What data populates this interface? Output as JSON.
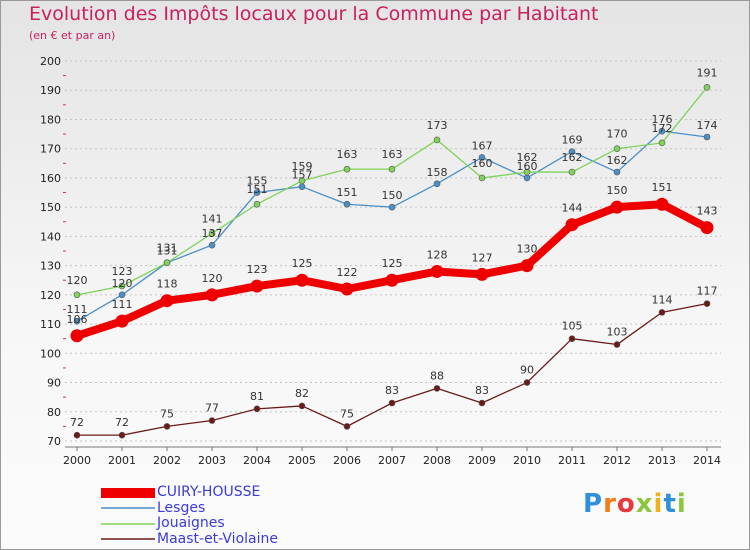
{
  "title": "Evolution des Impôts locaux pour la Commune par Habitant",
  "subtitle": "(en € et par an)",
  "logo": {
    "letters": [
      {
        "ch": "P",
        "color": "#2f8fd8"
      },
      {
        "ch": "r",
        "color": "#f07c1a"
      },
      {
        "ch": "o",
        "color": "#e83a3a"
      },
      {
        "ch": "x",
        "color": "#8cc63f"
      },
      {
        "ch": "i",
        "color": "#f0b21a"
      },
      {
        "ch": "t",
        "color": "#2f8fd8"
      },
      {
        "ch": "i",
        "color": "#8cc63f"
      }
    ]
  },
  "chart_data": {
    "type": "line",
    "title": "Evolution des Impôts locaux pour la Commune par Habitant",
    "subtitle": "(en € et par an)",
    "x": [
      2000,
      2001,
      2002,
      2003,
      2004,
      2005,
      2006,
      2007,
      2008,
      2009,
      2010,
      2011,
      2012,
      2013,
      2014
    ],
    "ylim": [
      70,
      200
    ],
    "yticks": [
      70,
      80,
      90,
      100,
      110,
      120,
      130,
      140,
      150,
      160,
      170,
      180,
      190,
      200
    ],
    "grid": "horizontal-dashed",
    "legend_position": "bottom-left",
    "series": [
      {
        "name": "CUIRY-HOUSSE",
        "color": "#ee0000",
        "emphasis": true,
        "values": [
          106,
          111,
          118,
          120,
          123,
          125,
          122,
          125,
          128,
          127,
          130,
          144,
          150,
          151,
          143
        ]
      },
      {
        "name": "Lesges",
        "color": "#4a90c8",
        "values": [
          111,
          120,
          131,
          137,
          155,
          157,
          151,
          150,
          158,
          167,
          160,
          169,
          162,
          176,
          174
        ]
      },
      {
        "name": "Jouaignes",
        "color": "#7fd35a",
        "values": [
          120,
          123,
          131,
          141,
          151,
          159,
          163,
          163,
          173,
          160,
          162,
          162,
          170,
          172,
          191
        ]
      },
      {
        "name": "Maast-et-Violaine",
        "color": "#6b1a1a",
        "values": [
          72,
          72,
          75,
          77,
          81,
          82,
          75,
          83,
          88,
          83,
          90,
          105,
          103,
          114,
          117
        ]
      }
    ]
  }
}
